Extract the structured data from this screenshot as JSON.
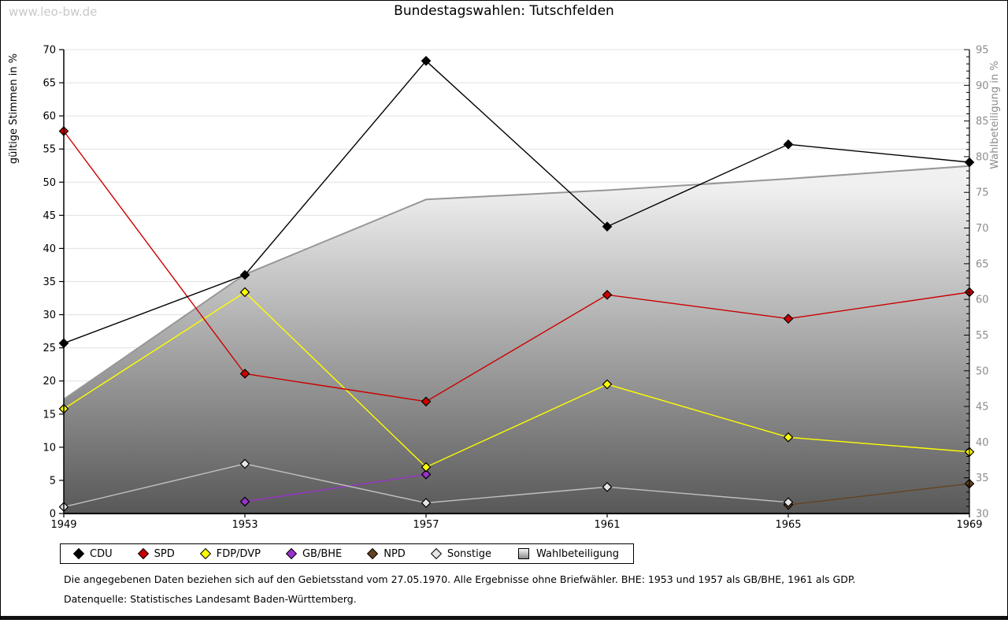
{
  "watermark": "www.leo-bw.de",
  "title": "Bundestagswahlen: Tutschfelden",
  "colors": {
    "background": "#ffffff",
    "grid": "#e0e0e0",
    "axis": "#000000",
    "right_axis_text": "#8c8c8c",
    "area_stroke": "#979797",
    "watermark": "#c9c9c9"
  },
  "chart_data": {
    "type": "line",
    "title": "Bundestagswahlen: Tutschfelden",
    "x": [
      1949,
      1953,
      1957,
      1961,
      1965,
      1969
    ],
    "left_axis": {
      "label": "gültige Stimmen in %",
      "min": 0,
      "max": 70,
      "step": 5
    },
    "right_axis": {
      "label": "Wahlbeteiligung in %",
      "min": 30,
      "max": 95,
      "step": 5,
      "minor_step": 1
    },
    "grid": true,
    "legend_position": "bottom",
    "series": [
      {
        "name": "CDU",
        "axis": "left",
        "color": "#000000",
        "marker_fill": "#000000",
        "values": [
          25.7,
          36.0,
          68.3,
          43.3,
          55.7,
          53.0
        ]
      },
      {
        "name": "SPD",
        "axis": "left",
        "color": "#cc0000",
        "marker_fill": "#cc0000",
        "values": [
          57.7,
          21.1,
          16.9,
          33.0,
          29.4,
          33.4
        ]
      },
      {
        "name": "FDP/DVP",
        "axis": "left",
        "color": "#ffff00",
        "marker_fill": "#ffff00",
        "values": [
          15.8,
          33.4,
          7.0,
          19.5,
          11.5,
          9.3
        ]
      },
      {
        "name": "GB/BHE",
        "axis": "left",
        "color": "#9932cc",
        "marker_fill": "#9932cc",
        "values": [
          null,
          1.8,
          5.9,
          null,
          null,
          null
        ]
      },
      {
        "name": "NPD",
        "axis": "left",
        "color": "#654321",
        "marker_fill": "#654321",
        "values": [
          null,
          null,
          null,
          null,
          1.3,
          4.5
        ]
      },
      {
        "name": "Sonstige",
        "axis": "left",
        "color": "#c0c0c0",
        "marker_fill": "#e6e6e6",
        "values": [
          1.0,
          7.5,
          1.6,
          4.0,
          1.7,
          null
        ]
      },
      {
        "name": "Wahlbeteiligung",
        "axis": "right",
        "type": "area",
        "stroke": "#979797",
        "fill_top": "#ffffff",
        "fill_mid": "#efefef",
        "fill_bottom": "#585858",
        "values": [
          46.0,
          63.5,
          74.0,
          75.3,
          76.9,
          78.7
        ]
      }
    ]
  },
  "legend": [
    {
      "label": "CDU",
      "marker": "diamond",
      "fill": "#000000"
    },
    {
      "label": "SPD",
      "marker": "diamond",
      "fill": "#cc0000"
    },
    {
      "label": "FDP/DVP",
      "marker": "diamond",
      "fill": "#ffff00"
    },
    {
      "label": "GB/BHE",
      "marker": "diamond",
      "fill": "#9932cc"
    },
    {
      "label": "NPD",
      "marker": "diamond",
      "fill": "#654321"
    },
    {
      "label": "Sonstige",
      "marker": "diamond",
      "fill": "#e6e6e6"
    },
    {
      "label": "Wahlbeteiligung",
      "marker": "gradient-square",
      "fill": "gradient"
    }
  ],
  "footer": {
    "note": "Die angegebenen Daten beziehen sich auf den Gebietsstand vom 27.05.1970. Alle Ergebnisse ohne Briefwähler. BHE: 1953 und 1957 als GB/BHE, 1961 als GDP.",
    "source": "Datenquelle: Statistisches Landesamt Baden-Württemberg."
  }
}
